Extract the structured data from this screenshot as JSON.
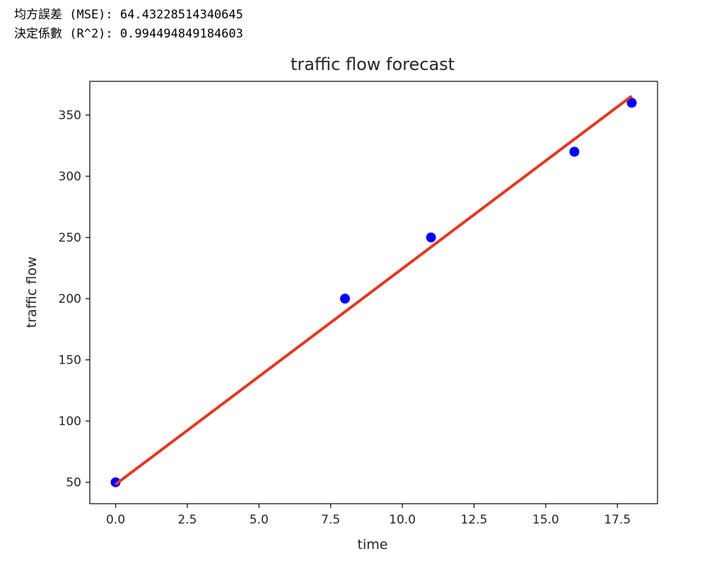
{
  "output": {
    "mse_line": "均方誤差 (MSE): 64.43228514340645",
    "r2_line": "決定係數 (R^2): 0.994494849184603"
  },
  "chart_data": {
    "type": "scatter",
    "title": "traffic flow forecast",
    "xlabel": "time",
    "ylabel": "traffic flow",
    "xlim": [
      -0.9,
      18.9
    ],
    "ylim": [
      32.5,
      377.5
    ],
    "xticks": [
      0.0,
      2.5,
      5.0,
      7.5,
      10.0,
      12.5,
      15.0,
      17.5
    ],
    "xtick_labels": [
      "0.0",
      "2.5",
      "5.0",
      "7.5",
      "10.0",
      "12.5",
      "15.0",
      "17.5"
    ],
    "yticks": [
      50,
      100,
      150,
      200,
      250,
      300,
      350
    ],
    "ytick_labels": [
      "50",
      "100",
      "150",
      "200",
      "250",
      "300",
      "350"
    ],
    "grid": false,
    "series": [
      {
        "type": "scatter",
        "color": "#0000ff",
        "x": [
          0,
          8,
          11,
          16,
          18
        ],
        "y": [
          50,
          200,
          250,
          320,
          360
        ]
      },
      {
        "type": "line",
        "color": "#e53723",
        "x": [
          0,
          18
        ],
        "y": [
          48.3,
          365.5
        ]
      }
    ]
  }
}
